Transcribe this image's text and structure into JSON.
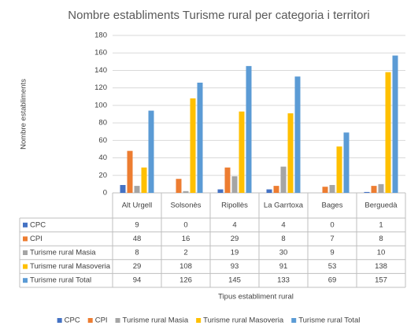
{
  "chart_data": {
    "type": "bar",
    "title": "Nombre establiments Turisme rural per categoria i territori",
    "y_label": "Nombre establiments",
    "x_label": "Tipus establiment rural",
    "categories": [
      "Alt Urgell",
      "Solsonès",
      "Ripollès",
      "La Garrtoxa",
      "Bages",
      "Berguedà"
    ],
    "series": [
      {
        "name": "CPC",
        "color": "#4472c4",
        "values": [
          9,
          0,
          4,
          4,
          0,
          1
        ]
      },
      {
        "name": "CPI",
        "color": "#ed7d31",
        "values": [
          48,
          16,
          29,
          8,
          7,
          8
        ]
      },
      {
        "name": "Turisme rural Masia",
        "color": "#a5a5a5",
        "values": [
          8,
          2,
          19,
          30,
          9,
          10
        ]
      },
      {
        "name": "Turisme rural Masoveria",
        "color": "#ffc000",
        "values": [
          29,
          108,
          93,
          91,
          53,
          138
        ]
      },
      {
        "name": "Turisme rural Total",
        "color": "#5b9bd5",
        "values": [
          94,
          126,
          145,
          133,
          69,
          157
        ]
      }
    ],
    "ylim": [
      0,
      180
    ],
    "yticks": [
      0,
      20,
      40,
      60,
      80,
      100,
      120,
      140,
      160,
      180
    ],
    "grid": true
  }
}
